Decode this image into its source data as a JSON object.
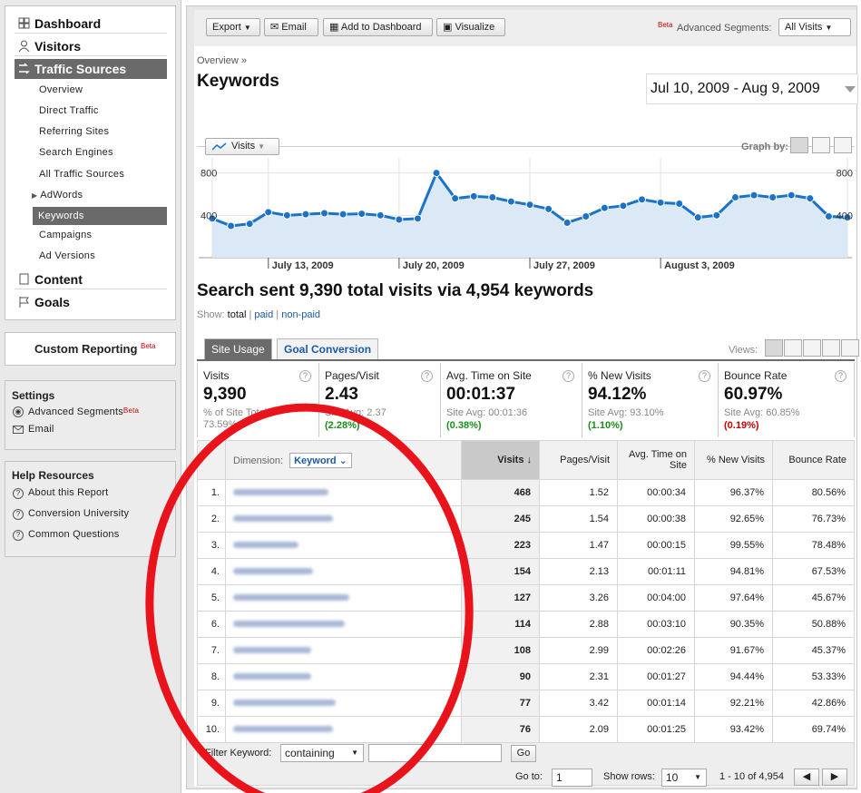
{
  "sidebar": {
    "nav": [
      {
        "label": "Dashboard",
        "icon": "grid-icon"
      },
      {
        "label": "Visitors",
        "icon": "person-icon"
      },
      {
        "label": "Traffic Sources",
        "icon": "traffic-icon"
      },
      {
        "label": "Content",
        "icon": "page-icon"
      },
      {
        "label": "Goals",
        "icon": "flag-icon"
      }
    ],
    "traffic_sub": [
      "Overview",
      "Direct Traffic",
      "Referring Sites",
      "Search Engines",
      "All Traffic Sources",
      "AdWords",
      "Keywords",
      "Campaigns",
      "Ad Versions"
    ],
    "custom_reporting": "Custom Reporting",
    "beta": "Beta",
    "settings": {
      "title": "Settings",
      "advanced_segments": "Advanced Segments",
      "email": "Email"
    },
    "help": {
      "title": "Help Resources",
      "links": [
        "About this Report",
        "Conversion University",
        "Common Questions"
      ]
    }
  },
  "toolbar": {
    "export": "Export",
    "email": "Email",
    "add_dashboard": "Add to Dashboard",
    "visualize": "Visualize",
    "beta": "Beta",
    "advanced_segments": "Advanced Segments:",
    "segment_value": "All Visits"
  },
  "breadcrumb": "Overview »",
  "page_title": "Keywords",
  "date_range": "Jul 10, 2009 - Aug 9, 2009",
  "graph": {
    "metric_tab": "Visits",
    "graph_by": "Graph by:"
  },
  "chart_data": {
    "type": "area",
    "series": [
      {
        "name": "Visits",
        "values": [
          370,
          300,
          320,
          430,
          400,
          410,
          420,
          410,
          415,
          400,
          360,
          370,
          800,
          560,
          580,
          570,
          530,
          500,
          460,
          330,
          390,
          470,
          490,
          550,
          520,
          510,
          380,
          400,
          570,
          590,
          570,
          590,
          560,
          390,
          380
        ]
      }
    ],
    "x_tick_labels": [
      "July 13, 2009",
      "July 20, 2009",
      "July 27, 2009",
      "August 3, 2009"
    ],
    "y_tick_labels_left": [
      "800",
      "400"
    ],
    "y_tick_labels_right": [
      "800",
      "400"
    ],
    "ylim": [
      0,
      900
    ],
    "color": "#1a73c8",
    "fill": "#dbe9f7"
  },
  "summary": {
    "title": "Search sent 9,390 total visits via 4,954 keywords",
    "show": "Show:",
    "show_total": "total",
    "show_paid": "paid",
    "show_nonpaid": "non-paid"
  },
  "tabs": {
    "site_usage": "Site Usage",
    "goal_conversion": "Goal Conversion",
    "views": "Views:"
  },
  "metrics": [
    {
      "label": "Visits",
      "value": "9,390",
      "sub1": "% of Site Total:",
      "sub2": "73.59%",
      "diff": ""
    },
    {
      "label": "Pages/Visit",
      "value": "2.43",
      "sub1": "Site Avg: 2.37",
      "sub2": "",
      "diff": "(2.28%)"
    },
    {
      "label": "Avg. Time on Site",
      "value": "00:01:37",
      "sub1": "Site Avg: 00:01:36",
      "sub2": "",
      "diff": "(0.38%)"
    },
    {
      "label": "% New Visits",
      "value": "94.12%",
      "sub1": "Site Avg: 93.10%",
      "sub2": "",
      "diff": "(1.10%)"
    },
    {
      "label": "Bounce Rate",
      "value": "60.97%",
      "sub1": "Site Avg: 60.85%",
      "sub2": "",
      "diff": "(0.19%)"
    }
  ],
  "table": {
    "dimension_label": "Dimension:",
    "dimension_value": "Keyword",
    "headers": [
      "Visits",
      "Pages/Visit",
      "Avg. Time on Site",
      "% New Visits",
      "Bounce Rate"
    ],
    "rows": [
      {
        "n": "1.",
        "visits": "468",
        "ppv": "1.52",
        "time": "00:00:34",
        "newv": "96.37%",
        "bounce": "80.56%"
      },
      {
        "n": "2.",
        "visits": "245",
        "ppv": "1.54",
        "time": "00:00:38",
        "newv": "92.65%",
        "bounce": "76.73%"
      },
      {
        "n": "3.",
        "visits": "223",
        "ppv": "1.47",
        "time": "00:00:15",
        "newv": "99.55%",
        "bounce": "78.48%"
      },
      {
        "n": "4.",
        "visits": "154",
        "ppv": "2.13",
        "time": "00:01:11",
        "newv": "94.81%",
        "bounce": "67.53%"
      },
      {
        "n": "5.",
        "visits": "127",
        "ppv": "3.26",
        "time": "00:04:00",
        "newv": "97.64%",
        "bounce": "45.67%"
      },
      {
        "n": "6.",
        "visits": "114",
        "ppv": "2.88",
        "time": "00:03:10",
        "newv": "90.35%",
        "bounce": "50.88%"
      },
      {
        "n": "7.",
        "visits": "108",
        "ppv": "2.99",
        "time": "00:02:26",
        "newv": "91.67%",
        "bounce": "45.37%"
      },
      {
        "n": "8.",
        "visits": "90",
        "ppv": "2.31",
        "time": "00:01:27",
        "newv": "94.44%",
        "bounce": "53.33%"
      },
      {
        "n": "9.",
        "visits": "77",
        "ppv": "3.42",
        "time": "00:01:14",
        "newv": "92.21%",
        "bounce": "42.86%"
      },
      {
        "n": "10.",
        "visits": "76",
        "ppv": "2.09",
        "time": "00:01:25",
        "newv": "93.42%",
        "bounce": "69.74%"
      }
    ]
  },
  "footer": {
    "filter_label": "Filter Keyword:",
    "filter_mode": "containing",
    "go": "Go",
    "goto_label": "Go to:",
    "goto_value": "1",
    "show_rows_label": "Show rows:",
    "show_rows_value": "10",
    "range": "1 - 10 of 4,954"
  },
  "colors": {
    "annotation": "#e8131b",
    "link": "#1a5aa8",
    "nav_active": "#6a6a6a"
  }
}
